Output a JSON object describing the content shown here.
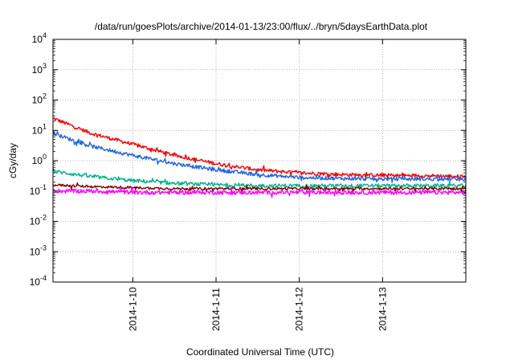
{
  "chart_data": {
    "type": "line",
    "title": "/data/run/goesPlots/archive/2014-01-13/23:00/flux/../bryn/5daysEarthData.plot",
    "xlabel": "Coordinated Universal Time (UTC)",
    "ylabel": "cGy/day",
    "yscale": "log",
    "ylim": [
      0.0001,
      10000
    ],
    "y_ticks": [
      {
        "base": "10",
        "exp": "-4",
        "value": 0.0001
      },
      {
        "base": "10",
        "exp": "-3",
        "value": 0.001
      },
      {
        "base": "10",
        "exp": "-2",
        "value": 0.01
      },
      {
        "base": "10",
        "exp": "-1",
        "value": 0.1
      },
      {
        "base": "10",
        "exp": "0",
        "value": 1
      },
      {
        "base": "10",
        "exp": "1",
        "value": 10
      },
      {
        "base": "10",
        "exp": "2",
        "value": 100
      },
      {
        "base": "10",
        "exp": "3",
        "value": 1000
      },
      {
        "base": "10",
        "exp": "4",
        "value": 10000
      }
    ],
    "xlim": [
      "2014-01-09 01:00",
      "2014-01-14 00:00"
    ],
    "x_ticks": [
      "2014-1-10",
      "2014-1-11",
      "2014-1-12",
      "2014-1-13"
    ],
    "x_tick_dates": [
      "2014-01-10",
      "2014-01-11",
      "2014-01-12",
      "2014-01-13"
    ],
    "grid": true,
    "series": [
      {
        "color": "#ff0000",
        "x": [
          "2014-01-09 01:00",
          "2014-01-09 12:00",
          "2014-01-10 00:00",
          "2014-01-10 12:00",
          "2014-01-11 00:00",
          "2014-01-11 12:00",
          "2014-01-12 00:00",
          "2014-01-12 12:00",
          "2014-01-13 00:00",
          "2014-01-13 12:00",
          "2014-01-14 00:00"
        ],
        "values": [
          25,
          8,
          3.5,
          1.5,
          0.8,
          0.5,
          0.4,
          0.35,
          0.33,
          0.32,
          0.3
        ]
      },
      {
        "color": "#1e64e6",
        "x": [
          "2014-01-09 01:00",
          "2014-01-09 12:00",
          "2014-01-10 00:00",
          "2014-01-10 12:00",
          "2014-01-11 00:00",
          "2014-01-11 12:00",
          "2014-01-12 00:00",
          "2014-01-12 12:00",
          "2014-01-13 00:00",
          "2014-01-13 12:00",
          "2014-01-14 00:00"
        ],
        "values": [
          8,
          3,
          1.5,
          0.8,
          0.5,
          0.35,
          0.28,
          0.26,
          0.25,
          0.25,
          0.25
        ]
      },
      {
        "color": "#00b48c",
        "x": [
          "2014-01-09 01:00",
          "2014-01-09 12:00",
          "2014-01-10 00:00",
          "2014-01-10 12:00",
          "2014-01-11 00:00",
          "2014-01-11 12:00",
          "2014-01-12 00:00",
          "2014-01-12 12:00",
          "2014-01-13 00:00",
          "2014-01-13 12:00",
          "2014-01-14 00:00"
        ],
        "values": [
          0.45,
          0.3,
          0.22,
          0.18,
          0.16,
          0.15,
          0.15,
          0.15,
          0.15,
          0.15,
          0.15
        ]
      },
      {
        "color": "#800000",
        "x": [
          "2014-01-09 01:00",
          "2014-01-09 12:00",
          "2014-01-10 00:00",
          "2014-01-10 12:00",
          "2014-01-11 00:00",
          "2014-01-11 12:00",
          "2014-01-12 00:00",
          "2014-01-12 12:00",
          "2014-01-13 00:00",
          "2014-01-13 12:00",
          "2014-01-14 00:00"
        ],
        "values": [
          0.16,
          0.14,
          0.13,
          0.12,
          0.12,
          0.12,
          0.12,
          0.12,
          0.12,
          0.12,
          0.12
        ]
      },
      {
        "color": "#ff00ff",
        "x": [
          "2014-01-09 01:00",
          "2014-01-09 12:00",
          "2014-01-10 00:00",
          "2014-01-10 12:00",
          "2014-01-11 00:00",
          "2014-01-11 12:00",
          "2014-01-12 00:00",
          "2014-01-12 12:00",
          "2014-01-13 00:00",
          "2014-01-13 12:00",
          "2014-01-14 00:00"
        ],
        "values": [
          0.1,
          0.1,
          0.09,
          0.09,
          0.09,
          0.09,
          0.09,
          0.09,
          0.09,
          0.09,
          0.09
        ]
      }
    ]
  }
}
